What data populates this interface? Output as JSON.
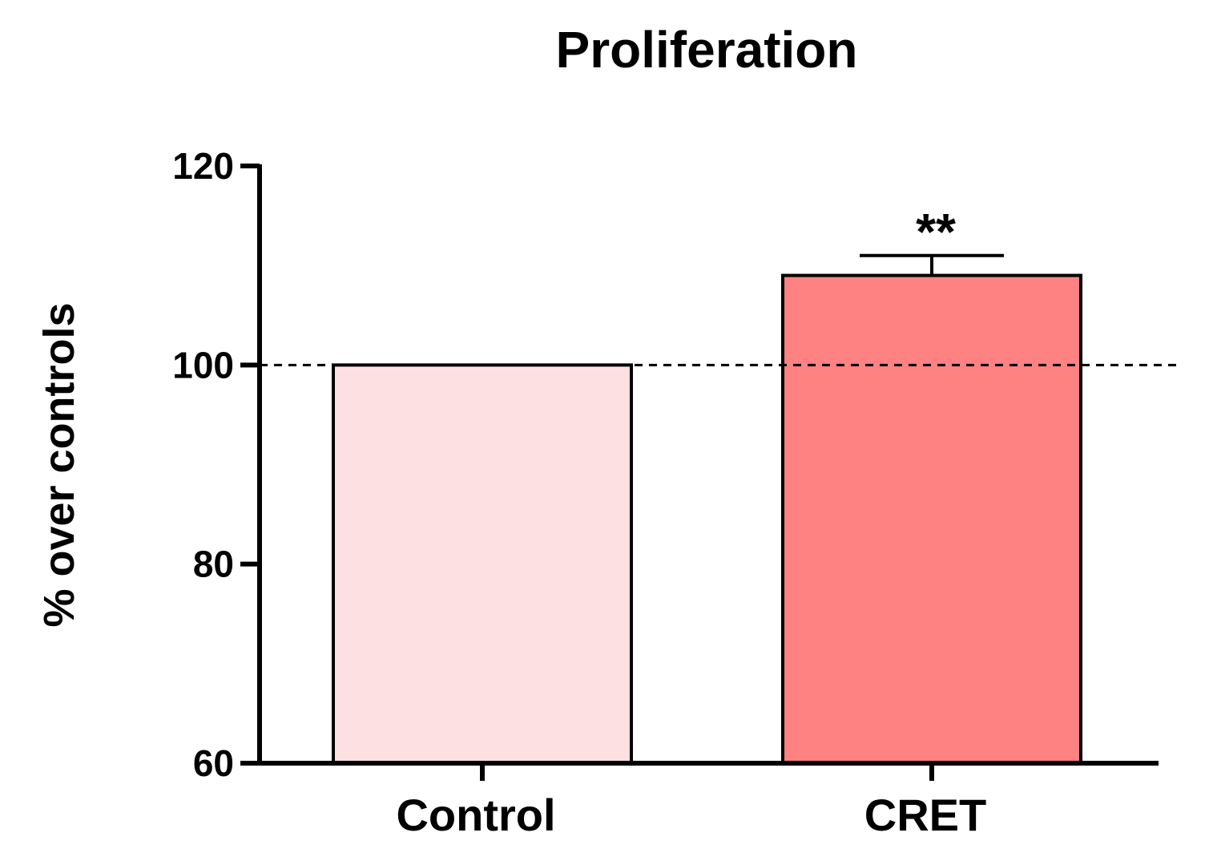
{
  "chart_data": {
    "type": "bar",
    "title": "Proliferation",
    "xlabel": "",
    "ylabel": "% over controls",
    "ylim": [
      60,
      120
    ],
    "yticks": [
      60,
      80,
      100,
      120
    ],
    "categories": [
      "Control",
      "CRET"
    ],
    "values": [
      100,
      109
    ],
    "errors": [
      0,
      2
    ],
    "colors": [
      "#fde0e2",
      "#ff8282"
    ],
    "reference_line": {
      "value": 100,
      "style": "dashed"
    },
    "annotations": [
      {
        "category": "CRET",
        "text": "**"
      }
    ],
    "grid": false,
    "legend": "none"
  }
}
